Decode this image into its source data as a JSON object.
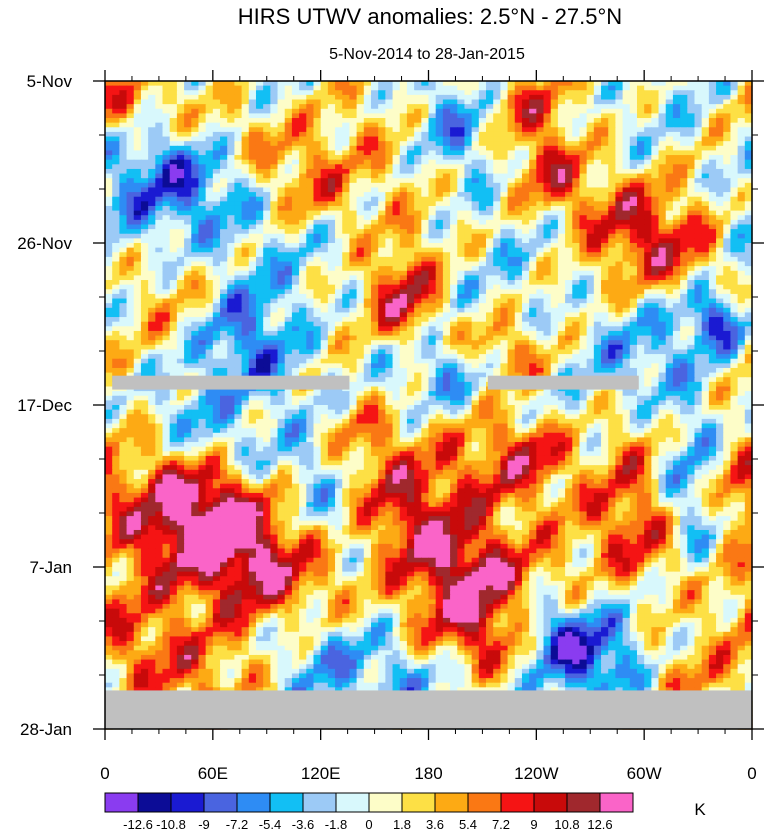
{
  "chart_data": {
    "type": "heatmap",
    "title": "HIRS UTWV anomalies: 2.5°N - 27.5°N",
    "subtitle": "5-Nov-2014 to 28-Jan-2015",
    "x_ticks": [
      {
        "label": "0",
        "lon": 0
      },
      {
        "label": "60E",
        "lon": 60
      },
      {
        "label": "120E",
        "lon": 120
      },
      {
        "label": "180",
        "lon": 180
      },
      {
        "label": "120W",
        "lon": 240
      },
      {
        "label": "60W",
        "lon": 300
      },
      {
        "label": "0",
        "lon": 360
      }
    ],
    "xlim": [
      0,
      360
    ],
    "y_ticks": [
      {
        "label": "5-Nov",
        "day": 0
      },
      {
        "label": "26-Nov",
        "day": 21
      },
      {
        "label": "17-Dec",
        "day": 42
      },
      {
        "label": "7-Jan",
        "day": 63
      },
      {
        "label": "28-Jan",
        "day": 84
      }
    ],
    "ylim_days": [
      0,
      84
    ],
    "levels": [
      -12.6,
      -10.8,
      -9,
      -7.2,
      -5.4,
      -3.6,
      -1.8,
      0,
      1.8,
      3.6,
      5.4,
      7.2,
      9,
      10.8,
      12.6
    ],
    "level_labels": [
      "-12.6",
      "-10.8",
      "-9",
      "-7.2",
      "-5.4",
      "-3.6",
      "-1.8",
      "0",
      "1.8",
      "3.6",
      "5.4",
      "7.2",
      "9",
      "10.8",
      "12.6"
    ],
    "colors": [
      "#8a3cf0",
      "#0c0c96",
      "#1a1ad2",
      "#4a64e0",
      "#2e8cf4",
      "#12bff4",
      "#9ccaf6",
      "#d8f8fc",
      "#fdfdc8",
      "#fde045",
      "#fdaa14",
      "#fa7814",
      "#f51414",
      "#c80a0a",
      "#a0282d",
      "#fa64c8"
    ],
    "missing_color": "#c0c0c0",
    "units": "K",
    "features": [
      {
        "lon": 27,
        "day": 74.5,
        "amp": 8,
        "sx": 26,
        "sy": 5,
        "tilt": 0.5
      },
      {
        "lon": 55,
        "day": 56,
        "amp": 10.5,
        "sx": 40,
        "sy": 9,
        "tilt": 0.6
      },
      {
        "lon": 78,
        "day": 61,
        "amp": 8.5,
        "sx": 30,
        "sy": 6,
        "tilt": 0.5
      },
      {
        "lon": 95,
        "day": 41,
        "amp": -4,
        "sx": 40,
        "sy": 6,
        "tilt": 0.9
      },
      {
        "lon": 62,
        "day": 47,
        "amp": -8.5,
        "sx": 24,
        "sy": 4,
        "tilt": 0.8
      },
      {
        "lon": 128,
        "day": 56,
        "amp": -6.5,
        "sx": 22,
        "sy": 6,
        "tilt": 0.8
      },
      {
        "lon": 148,
        "day": 52,
        "amp": 6.5,
        "sx": 26,
        "sy": 5,
        "tilt": 0.7
      },
      {
        "lon": 145,
        "day": 45,
        "amp": 6,
        "sx": 18,
        "sy": 4,
        "tilt": 0.6
      },
      {
        "lon": 168,
        "day": 29.5,
        "amp": 11,
        "sx": 14,
        "sy": 5,
        "tilt": 0.4
      },
      {
        "lon": 185,
        "day": 36,
        "amp": -6,
        "sx": 22,
        "sy": 4,
        "tilt": 0.7
      },
      {
        "lon": 195,
        "day": 60.5,
        "amp": 10,
        "sx": 28,
        "sy": 4.5,
        "tilt": 0.6
      },
      {
        "lon": 205,
        "day": 69,
        "amp": 10.5,
        "sx": 34,
        "sy": 5,
        "tilt": 0.6
      },
      {
        "lon": 218,
        "day": 52,
        "amp": 7,
        "sx": 24,
        "sy": 4,
        "tilt": 0.7
      },
      {
        "lon": 240,
        "day": 48,
        "amp": 8.5,
        "sx": 16,
        "sy": 3,
        "tilt": 0.5
      },
      {
        "lon": 215,
        "day": 34.5,
        "amp": 6.5,
        "sx": 18,
        "sy": 3,
        "tilt": 0.4
      },
      {
        "lon": 245,
        "day": 71,
        "amp": -8,
        "sx": 18,
        "sy": 3.5,
        "tilt": 0.6
      },
      {
        "lon": 270,
        "day": 75,
        "amp": -8.5,
        "sx": 22,
        "sy": 4,
        "tilt": 0.5
      },
      {
        "lon": 325,
        "day": 50,
        "amp": -7.5,
        "sx": 16,
        "sy": 8,
        "tilt": 0.3
      },
      {
        "lon": 295,
        "day": 46,
        "amp": 5,
        "sx": 20,
        "sy": 8,
        "tilt": 0.5
      },
      {
        "lon": 300,
        "day": 60,
        "amp": 7.5,
        "sx": 20,
        "sy": 5,
        "tilt": 0.4
      },
      {
        "lon": 350,
        "day": 53,
        "amp": 7,
        "sx": 12,
        "sy": 4,
        "tilt": 0.2
      },
      {
        "lon": 325,
        "day": 23,
        "amp": 5.5,
        "sx": 20,
        "sy": 4,
        "tilt": 0.4
      },
      {
        "lon": 340,
        "day": 31,
        "amp": -9,
        "sx": 12,
        "sy": 3,
        "tilt": 0.3
      },
      {
        "lon": 290,
        "day": 18,
        "amp": 7.5,
        "sx": 22,
        "sy": 5,
        "tilt": 0.5
      },
      {
        "lon": 248,
        "day": 12,
        "amp": 8,
        "sx": 16,
        "sy": 4,
        "tilt": 0.5
      },
      {
        "lon": 200,
        "day": 8,
        "amp": -5,
        "sx": 20,
        "sy": 6,
        "tilt": 0.7
      },
      {
        "lon": 230,
        "day": 2.5,
        "amp": 6,
        "sx": 18,
        "sy": 3,
        "tilt": 0.4
      },
      {
        "lon": 160,
        "day": 10,
        "amp": 4.5,
        "sx": 20,
        "sy": 5,
        "tilt": 0.5
      },
      {
        "lon": 120,
        "day": 14,
        "amp": 6,
        "sx": 20,
        "sy": 4,
        "tilt": 0.5
      },
      {
        "lon": 45,
        "day": 13,
        "amp": -8,
        "sx": 32,
        "sy": 6,
        "tilt": 0.5
      },
      {
        "lon": 10,
        "day": 3,
        "amp": 5,
        "sx": 14,
        "sy": 3,
        "tilt": 0.3
      },
      {
        "lon": 62,
        "day": 6,
        "amp": 6,
        "sx": 26,
        "sy": 4,
        "tilt": 0.4
      },
      {
        "lon": 80,
        "day": 33,
        "amp": -5,
        "sx": 22,
        "sy": 5,
        "tilt": 0.6
      },
      {
        "lon": 45,
        "day": 30,
        "amp": 3.5,
        "sx": 20,
        "sy": 5,
        "tilt": 0.5
      },
      {
        "lon": 175,
        "day": 79,
        "amp": -5,
        "sx": 28,
        "sy": 4,
        "tilt": 0.6
      },
      {
        "lon": 110,
        "day": 73,
        "amp": -5,
        "sx": 20,
        "sy": 4,
        "tilt": 0.5
      },
      {
        "lon": 290,
        "day": 36,
        "amp": -5,
        "sx": 24,
        "sy": 5,
        "tilt": 0.6
      },
      {
        "lon": 330,
        "day": 78,
        "amp": 4,
        "sx": 20,
        "sy": 3,
        "tilt": 0.4
      }
    ],
    "missing_regions": [
      {
        "lon_range": [
          4,
          136
        ],
        "day_range": [
          38.2,
          40.0
        ]
      },
      {
        "lon_range": [
          213,
          297
        ],
        "day_range": [
          38.2,
          40.0
        ]
      },
      {
        "lon_range": [
          0,
          360
        ],
        "day_range": [
          79.0,
          84.0
        ]
      }
    ]
  }
}
